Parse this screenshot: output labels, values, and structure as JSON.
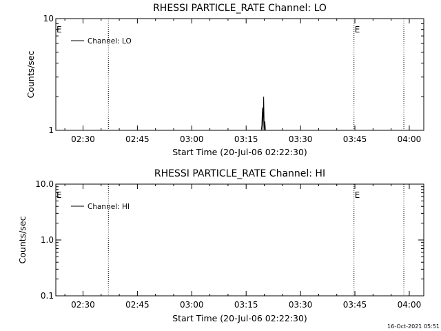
{
  "timestamp": "16-Oct-2021 05:51",
  "chart_data": [
    {
      "type": "line",
      "title": "RHESSI PARTICLE_RATE Channel: LO",
      "xlabel": "Start Time (20-Jul-06 02:22:30)",
      "ylabel": "Counts/sec",
      "yscale": "log",
      "xlim": [
        "02:22:30",
        "04:04:00"
      ],
      "ylim": [
        1,
        10
      ],
      "xticks": [
        "02:30",
        "02:45",
        "03:00",
        "03:15",
        "03:30",
        "03:45",
        "04:00"
      ],
      "yticks": [
        {
          "value": 1,
          "label": "1"
        },
        {
          "value": 10,
          "label": "10"
        }
      ],
      "grid": false,
      "legend": {
        "position": "top-left",
        "entries": [
          "Channel: LO"
        ]
      },
      "series": [
        {
          "name": "Channel: LO",
          "x": [
            "03:19:10",
            "03:19:20",
            "03:19:30",
            "03:19:40",
            "03:19:50",
            "03:20:00",
            "03:20:10",
            "03:20:20"
          ],
          "y": [
            1,
            1.1,
            1.6,
            1,
            2.0,
            1,
            1.2,
            1
          ]
        }
      ],
      "vlines": [
        "02:37:00",
        "03:44:45",
        "03:58:30"
      ],
      "markers": [
        {
          "label": "E",
          "x": "02:22:30"
        },
        {
          "label": "E",
          "x": "03:44:45"
        }
      ]
    },
    {
      "type": "line",
      "title": "RHESSI PARTICLE_RATE Channel: HI",
      "xlabel": "Start Time (20-Jul-06 02:22:30)",
      "ylabel": "Counts/sec",
      "yscale": "log",
      "xlim": [
        "02:22:30",
        "04:04:00"
      ],
      "ylim": [
        0.1,
        10
      ],
      "xticks": [
        "02:30",
        "02:45",
        "03:00",
        "03:15",
        "03:30",
        "03:45",
        "04:00"
      ],
      "yticks": [
        {
          "value": 0.1,
          "label": "0.1"
        },
        {
          "value": 1,
          "label": "1.0"
        },
        {
          "value": 10,
          "label": "10.0"
        }
      ],
      "grid": false,
      "legend": {
        "position": "top-left",
        "entries": [
          "Channel: HI"
        ]
      },
      "series": [
        {
          "name": "Channel: HI",
          "x": [],
          "y": []
        }
      ],
      "vlines": [
        "02:37:00",
        "03:44:45",
        "03:58:30"
      ],
      "markers": [
        {
          "label": "E",
          "x": "02:22:30"
        },
        {
          "label": "E",
          "x": "03:44:45"
        }
      ]
    }
  ]
}
